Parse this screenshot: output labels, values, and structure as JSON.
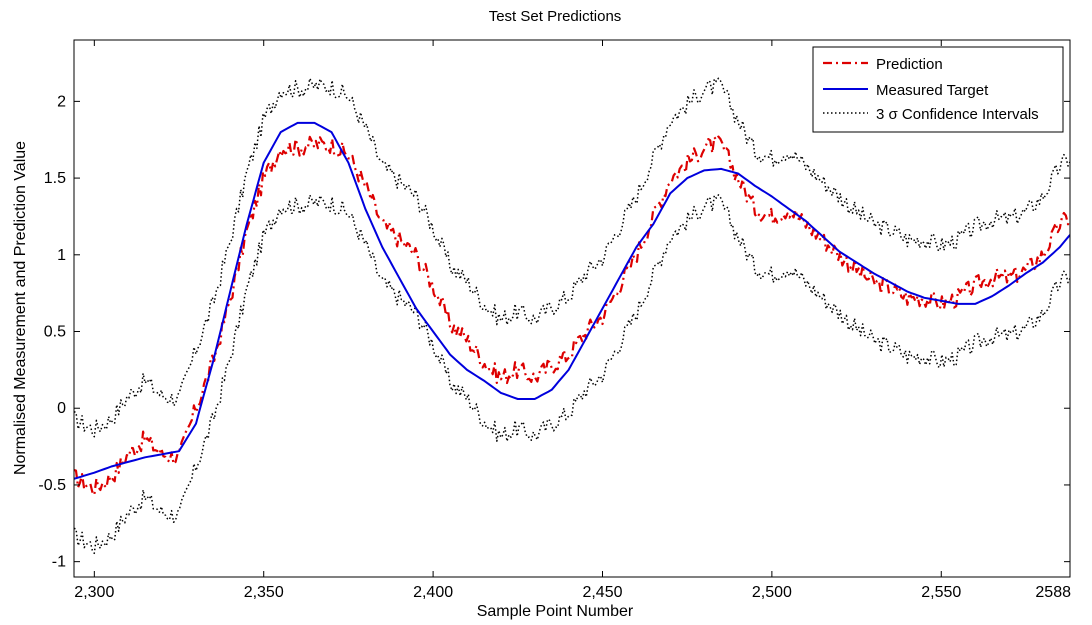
{
  "chart_data": {
    "type": "line",
    "title": "Test Set Predictions",
    "xlabel": "Sample Point Number",
    "ylabel": "Normalised Measurement and Prediction Value",
    "xlim": [
      2294,
      2588
    ],
    "ylim": [
      -1.1,
      2.4
    ],
    "xticks": [
      2300,
      2350,
      2400,
      2450,
      2500,
      2550,
      2588
    ],
    "xtick_labels": [
      "2,300",
      "2,350",
      "2,400",
      "2,450",
      "2,500",
      "2,550",
      "2588"
    ],
    "yticks": [
      -1,
      -0.5,
      0,
      0.5,
      1,
      1.5,
      2
    ],
    "ytick_labels": [
      "-1",
      "-0.5",
      "0",
      "0.5",
      "1",
      "1.5",
      "2"
    ],
    "grid": false,
    "legend_position": "top-right",
    "ci_halfwidth": 0.38,
    "series": [
      {
        "name": "Prediction",
        "color": "#dd0000",
        "style": "dash-dot",
        "x": [
          2294,
          2300,
          2305,
          2310,
          2315,
          2320,
          2325,
          2330,
          2335,
          2340,
          2345,
          2350,
          2355,
          2360,
          2365,
          2370,
          2375,
          2380,
          2385,
          2390,
          2395,
          2400,
          2405,
          2410,
          2415,
          2420,
          2425,
          2430,
          2435,
          2440,
          2445,
          2450,
          2455,
          2460,
          2465,
          2470,
          2475,
          2480,
          2485,
          2490,
          2495,
          2500,
          2505,
          2510,
          2515,
          2520,
          2525,
          2530,
          2535,
          2540,
          2545,
          2550,
          2555,
          2560,
          2565,
          2570,
          2575,
          2580,
          2585,
          2588
        ],
        "y": [
          -0.45,
          -0.52,
          -0.45,
          -0.3,
          -0.2,
          -0.3,
          -0.32,
          0.0,
          0.3,
          0.7,
          1.15,
          1.5,
          1.7,
          1.7,
          1.72,
          1.72,
          1.65,
          1.45,
          1.2,
          1.1,
          1.0,
          0.8,
          0.55,
          0.45,
          0.3,
          0.2,
          0.25,
          0.2,
          0.28,
          0.35,
          0.5,
          0.6,
          0.8,
          1.0,
          1.25,
          1.5,
          1.6,
          1.7,
          1.72,
          1.5,
          1.3,
          1.25,
          1.3,
          1.2,
          1.1,
          1.0,
          0.9,
          0.82,
          0.78,
          0.72,
          0.72,
          0.68,
          0.72,
          0.8,
          0.85,
          0.85,
          0.9,
          1.0,
          1.2,
          1.25
        ]
      },
      {
        "name": "Measured Target",
        "color": "#0000dd",
        "style": "solid",
        "x": [
          2294,
          2300,
          2305,
          2310,
          2315,
          2320,
          2325,
          2330,
          2335,
          2340,
          2345,
          2350,
          2355,
          2360,
          2365,
          2370,
          2375,
          2380,
          2385,
          2390,
          2395,
          2400,
          2405,
          2410,
          2415,
          2420,
          2425,
          2430,
          2435,
          2440,
          2445,
          2450,
          2455,
          2460,
          2465,
          2470,
          2475,
          2480,
          2485,
          2490,
          2495,
          2500,
          2505,
          2510,
          2515,
          2520,
          2525,
          2530,
          2535,
          2540,
          2545,
          2550,
          2555,
          2560,
          2565,
          2570,
          2575,
          2580,
          2585,
          2588
        ],
        "y": [
          -0.46,
          -0.42,
          -0.38,
          -0.35,
          -0.32,
          -0.3,
          -0.28,
          -0.1,
          0.3,
          0.75,
          1.2,
          1.6,
          1.8,
          1.86,
          1.86,
          1.8,
          1.6,
          1.3,
          1.05,
          0.85,
          0.65,
          0.5,
          0.35,
          0.25,
          0.18,
          0.1,
          0.06,
          0.06,
          0.12,
          0.25,
          0.45,
          0.65,
          0.85,
          1.05,
          1.2,
          1.4,
          1.5,
          1.55,
          1.56,
          1.53,
          1.45,
          1.38,
          1.3,
          1.22,
          1.12,
          1.02,
          0.95,
          0.88,
          0.82,
          0.76,
          0.72,
          0.7,
          0.68,
          0.68,
          0.73,
          0.8,
          0.88,
          0.95,
          1.05,
          1.13
        ]
      },
      {
        "name": "3 σ Confidence Intervals",
        "color": "#000000",
        "style": "dotted"
      }
    ]
  }
}
